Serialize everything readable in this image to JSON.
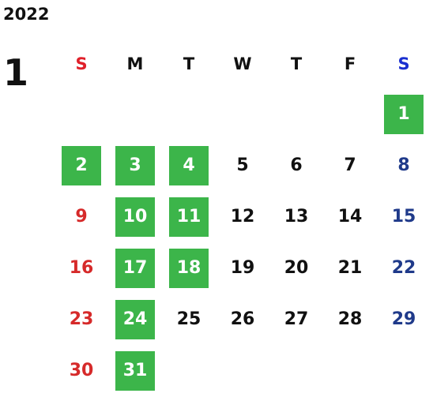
{
  "year": "2022",
  "month": "1",
  "weekdays": [
    {
      "label": "S",
      "type": "sun"
    },
    {
      "label": "M",
      "type": "wk"
    },
    {
      "label": "T",
      "type": "wk"
    },
    {
      "label": "W",
      "type": "wk"
    },
    {
      "label": "T",
      "type": "wk"
    },
    {
      "label": "F",
      "type": "wk"
    },
    {
      "label": "S",
      "type": "sat"
    }
  ],
  "weeks": [
    [
      null,
      null,
      null,
      null,
      null,
      null,
      {
        "d": "1",
        "hl": true
      }
    ],
    [
      {
        "d": "2",
        "hl": true
      },
      {
        "d": "3",
        "hl": true
      },
      {
        "d": "4",
        "hl": true
      },
      {
        "d": "5",
        "hl": false
      },
      {
        "d": "6",
        "hl": false
      },
      {
        "d": "7",
        "hl": false
      },
      {
        "d": "8",
        "hl": false
      }
    ],
    [
      {
        "d": "9",
        "hl": false
      },
      {
        "d": "10",
        "hl": true
      },
      {
        "d": "11",
        "hl": true
      },
      {
        "d": "12",
        "hl": false
      },
      {
        "d": "13",
        "hl": false
      },
      {
        "d": "14",
        "hl": false
      },
      {
        "d": "15",
        "hl": false
      }
    ],
    [
      {
        "d": "16",
        "hl": false
      },
      {
        "d": "17",
        "hl": true
      },
      {
        "d": "18",
        "hl": true
      },
      {
        "d": "19",
        "hl": false
      },
      {
        "d": "20",
        "hl": false
      },
      {
        "d": "21",
        "hl": false
      },
      {
        "d": "22",
        "hl": false
      }
    ],
    [
      {
        "d": "23",
        "hl": false
      },
      {
        "d": "24",
        "hl": true
      },
      {
        "d": "25",
        "hl": false
      },
      {
        "d": "26",
        "hl": false
      },
      {
        "d": "27",
        "hl": false
      },
      {
        "d": "28",
        "hl": false
      },
      {
        "d": "29",
        "hl": false
      }
    ],
    [
      {
        "d": "30",
        "hl": false
      },
      {
        "d": "31",
        "hl": true
      },
      null,
      null,
      null,
      null,
      null
    ]
  ],
  "colors": {
    "highlight": "#3cb54a",
    "sunday": "#d62a2a",
    "saturday": "#1f3a8a",
    "text": "#111111"
  }
}
